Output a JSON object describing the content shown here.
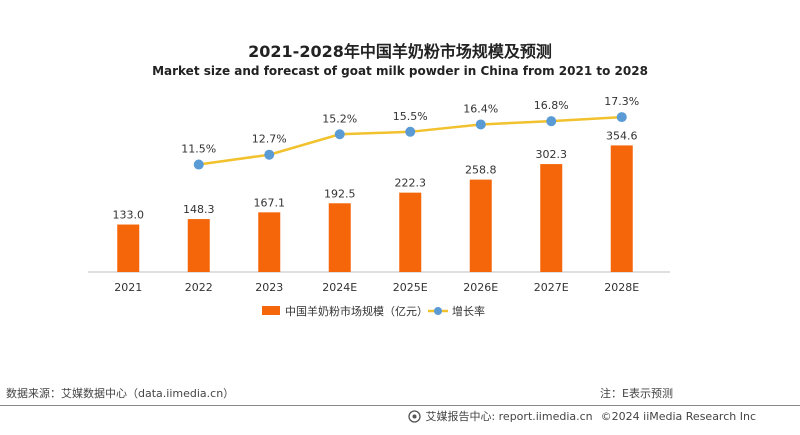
{
  "chart_data": {
    "type": "bar",
    "title": "2021-2028年中国羊奶粉市场规模及预测",
    "subtitle": "Market size and forecast of goat milk powder in China from 2021 to 2028",
    "categories": [
      "2021",
      "2022",
      "2023",
      "2024E",
      "2025E",
      "2026E",
      "2027E",
      "2028E"
    ],
    "series": [
      {
        "name": "中国羊奶粉市场规模（亿元）",
        "type": "bar",
        "color": "#F5660A",
        "values": [
          133.0,
          148.3,
          167.1,
          192.5,
          222.3,
          258.8,
          302.3,
          354.6
        ],
        "labels": [
          "133.0",
          "148.3",
          "167.1",
          "192.5",
          "222.3",
          "258.8",
          "302.3",
          "354.6"
        ]
      },
      {
        "name": "增长率",
        "type": "line",
        "color": "#F2C12E",
        "marker_color": "#5B9BD5",
        "values": [
          null,
          11.5,
          12.7,
          15.2,
          15.5,
          16.4,
          16.8,
          17.3
        ],
        "labels": [
          "",
          "11.5%",
          "12.7%",
          "15.2%",
          "15.5%",
          "16.4%",
          "16.8%",
          "17.3%"
        ]
      }
    ],
    "bar_ylim": [
      0,
      400
    ],
    "line_ylim": [
      0,
      20
    ],
    "grid": false,
    "legend": "bottom-center"
  },
  "footer": {
    "source": "数据来源：艾媒数据中心（data.iimedia.cn）",
    "note": "注：E表示预测",
    "brand": "艾媒报告中心: report.iimedia.cn",
    "copyright": "©2024  iiMedia Research  Inc"
  }
}
